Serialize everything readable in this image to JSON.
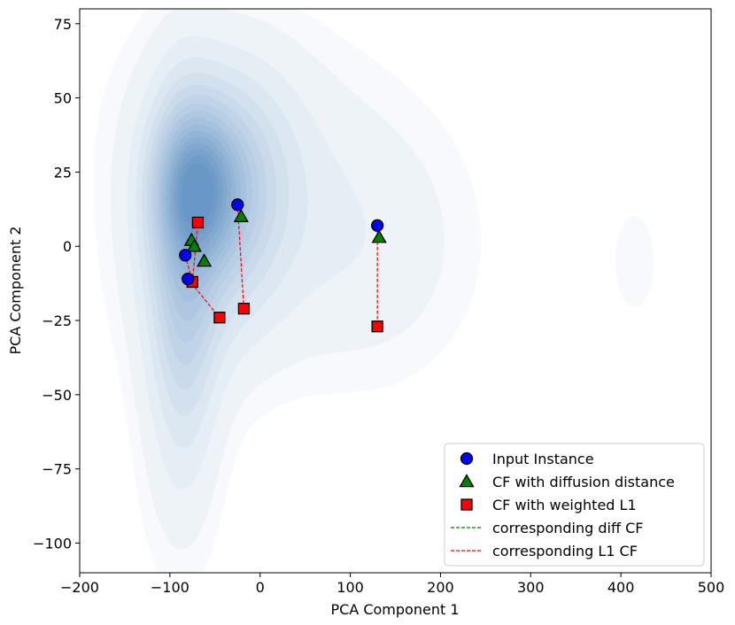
{
  "chart_data": {
    "type": "scatter",
    "title": "",
    "xlabel": "PCA Component 1",
    "ylabel": "PCA Component 2",
    "xlim": [
      -200,
      500
    ],
    "ylim": [
      -110,
      80
    ],
    "xticks": [
      -200,
      -100,
      0,
      100,
      200,
      300,
      400,
      500
    ],
    "yticks": [
      -100,
      -75,
      -50,
      -25,
      0,
      25,
      50,
      75
    ],
    "xtick_labels": [
      "−200",
      "−100",
      "0",
      "100",
      "200",
      "300",
      "400",
      "500"
    ],
    "ytick_labels": [
      "−100",
      "−75",
      "−50",
      "−25",
      "0",
      "25",
      "50",
      "75"
    ],
    "grid": false,
    "background": "kde-density-blues",
    "density_blobs": [
      {
        "x": -70,
        "y": 20,
        "sx": 30,
        "sy": 16,
        "rot": 0.3,
        "w": 1.0
      },
      {
        "x": -40,
        "y": 20,
        "sx": 45,
        "sy": 22,
        "rot": 0.0,
        "w": 0.55
      },
      {
        "x": -85,
        "y": -10,
        "sx": 25,
        "sy": 40,
        "rot": 0.0,
        "w": 0.6
      },
      {
        "x": -60,
        "y": -5,
        "sx": 55,
        "sy": 28,
        "rot": 0.0,
        "w": 0.35
      },
      {
        "x": 30,
        "y": 15,
        "sx": 110,
        "sy": 35,
        "rot": 0.0,
        "w": 0.2
      },
      {
        "x": 130,
        "y": -5,
        "sx": 80,
        "sy": 30,
        "rot": 0.0,
        "w": 0.12
      },
      {
        "x": -90,
        "y": -60,
        "sx": 35,
        "sy": 40,
        "rot": 0.0,
        "w": 0.15
      },
      {
        "x": -50,
        "y": 45,
        "sx": 70,
        "sy": 25,
        "rot": 0.0,
        "w": 0.2
      },
      {
        "x": 415,
        "y": -5,
        "sx": 25,
        "sy": 18,
        "rot": 0.0,
        "w": 0.1
      }
    ],
    "colors": {
      "input": "#0000ff",
      "diffusion": "#008000",
      "weighted_l1": "#ff0000",
      "diff_line": "#008000",
      "l1_line": "#ff0000",
      "density": "#2f6fb0"
    },
    "series": [
      {
        "name": "Input Instance",
        "marker": "circle",
        "points": [
          [
            -83,
            -3
          ],
          [
            -80,
            -11
          ],
          [
            -25,
            14
          ],
          [
            130,
            7
          ]
        ]
      },
      {
        "name": "CF with diffusion distance",
        "marker": "triangle",
        "points": [
          [
            -76,
            2
          ],
          [
            -73,
            0
          ],
          [
            -62,
            -5
          ],
          [
            -21,
            10
          ],
          [
            132,
            3
          ]
        ]
      },
      {
        "name": "CF with weighted L1",
        "marker": "square",
        "points": [
          [
            -69,
            8
          ],
          [
            -75,
            -12
          ],
          [
            -45,
            -24
          ],
          [
            -18,
            -21
          ],
          [
            130,
            -27
          ]
        ]
      }
    ],
    "l1_links": [
      [
        [
          -83,
          -3
        ],
        [
          -75,
          -12
        ]
      ],
      [
        [
          -80,
          -11
        ],
        [
          -45,
          -24
        ]
      ],
      [
        [
          -25,
          14
        ],
        [
          -18,
          -21
        ]
      ],
      [
        [
          130,
          7
        ],
        [
          130,
          -27
        ]
      ],
      [
        [
          -75,
          -12
        ],
        [
          -69,
          8
        ]
      ]
    ],
    "diff_links": [],
    "legend": {
      "position": "lower-right",
      "entries": [
        {
          "label": "Input Instance",
          "kind": "circle"
        },
        {
          "label": "CF with diffusion distance",
          "kind": "triangle"
        },
        {
          "label": "CF with weighted L1",
          "kind": "square"
        },
        {
          "label": "corresponding diff CF",
          "kind": "diff-line"
        },
        {
          "label": "corresponding L1 CF",
          "kind": "l1-line"
        }
      ]
    }
  }
}
